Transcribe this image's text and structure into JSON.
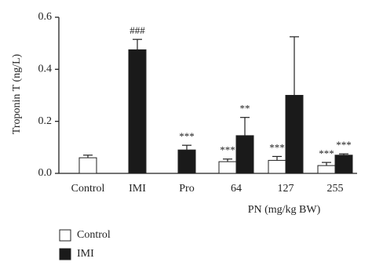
{
  "chart_data": {
    "type": "bar",
    "y_label": "Troponin T (ng/L)",
    "x_group_label": "PN (mg/kg BW)",
    "categories": [
      "Control",
      "IMI",
      "Pro",
      "64",
      "127",
      "255"
    ],
    "series": [
      {
        "name": "Control",
        "color": "#ffffff",
        "values": [
          0.06,
          null,
          null,
          0.045,
          0.05,
          0.03
        ],
        "errors": [
          0.01,
          null,
          null,
          0.01,
          0.015,
          0.012
        ],
        "significance": [
          null,
          null,
          null,
          "***",
          "***",
          "***"
        ]
      },
      {
        "name": "IMI",
        "color": "#1a1a1a",
        "values": [
          null,
          0.475,
          0.09,
          0.145,
          0.3,
          0.07
        ],
        "errors": [
          null,
          0.04,
          0.018,
          0.07,
          0.225,
          0.005
        ],
        "significance": [
          null,
          "###",
          "***",
          "**",
          null,
          "***"
        ]
      }
    ],
    "ylim": [
      0,
      0.6
    ],
    "yticks": [
      {
        "value": 0,
        "label": "0.0"
      },
      0.2,
      0.4,
      0.6
    ]
  }
}
